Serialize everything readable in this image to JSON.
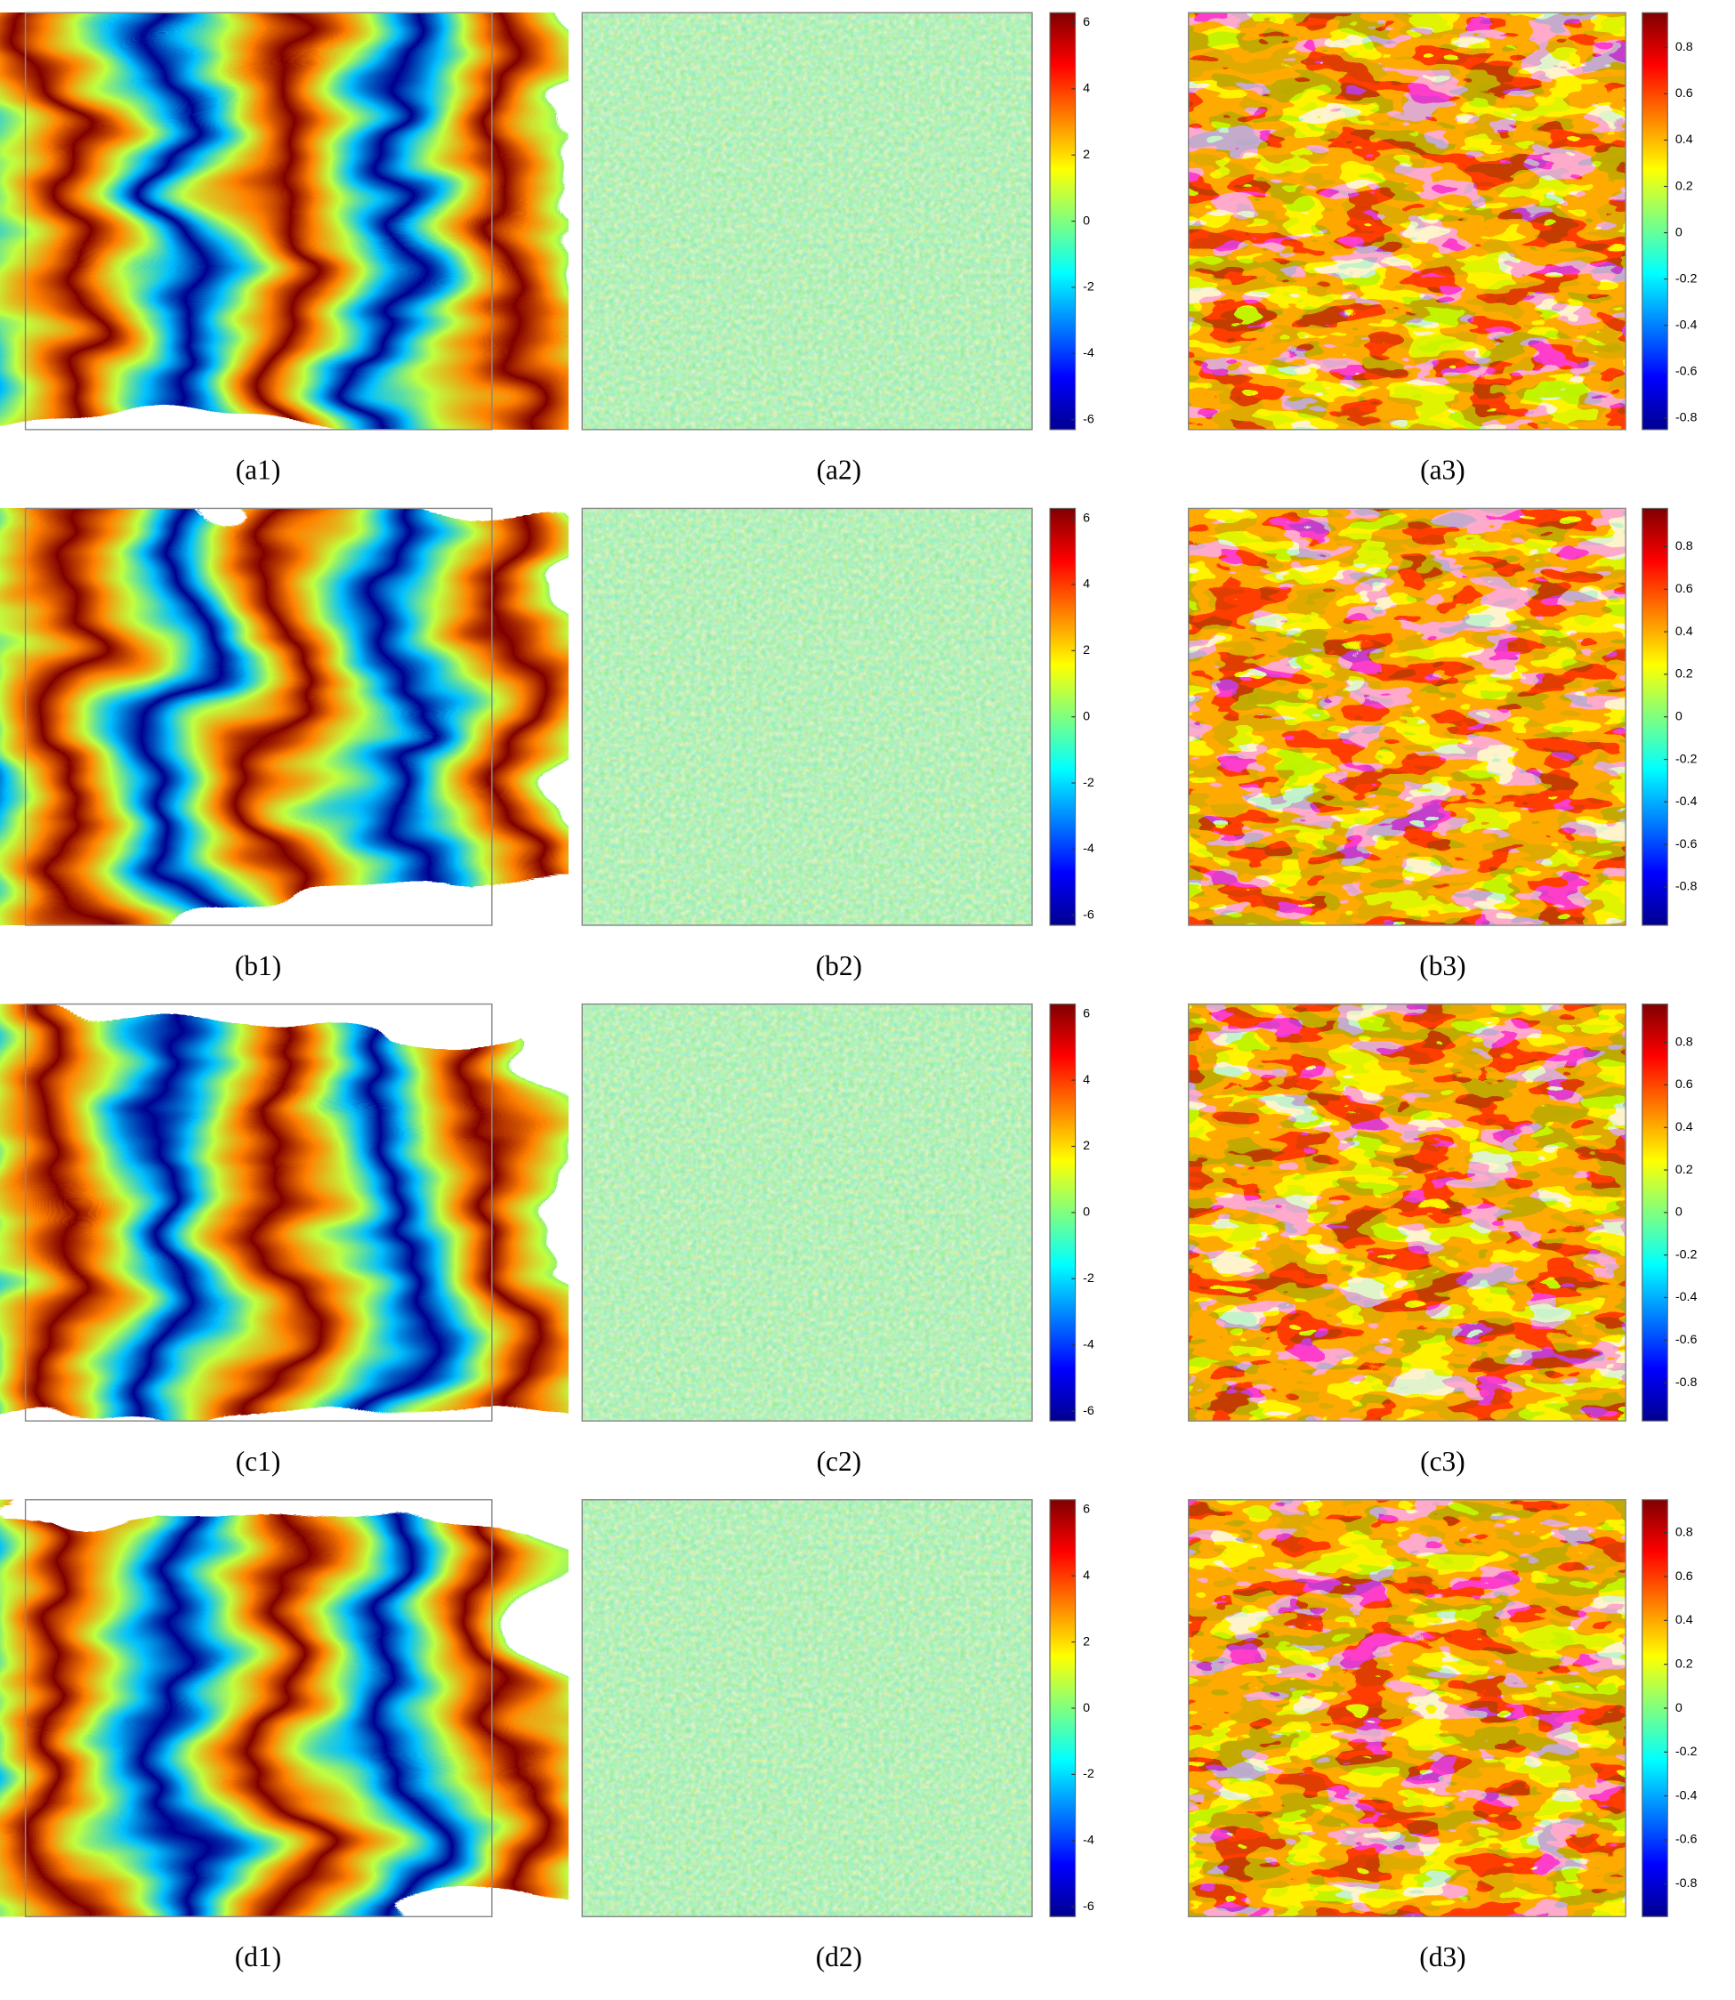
{
  "panels": [
    {
      "label": "(a1)"
    },
    {
      "label": "(a2)",
      "colorbar": {
        "lim": [
          -6.3,
          6.3
        ],
        "ticks": [
          6,
          4,
          2,
          0,
          -2,
          -4,
          -6
        ]
      }
    },
    {
      "label": "(a3)",
      "colorbar": {
        "lim": [
          -0.85,
          0.95
        ],
        "ticks": [
          0.8,
          0.6,
          0.4,
          0.2,
          0,
          -0.2,
          -0.4,
          -0.6,
          -0.8
        ]
      }
    },
    {
      "label": "(b1)"
    },
    {
      "label": "(b2)",
      "colorbar": {
        "lim": [
          -6.3,
          6.3
        ],
        "ticks": [
          6,
          4,
          2,
          0,
          -2,
          -4,
          -6
        ]
      }
    },
    {
      "label": "(b3)",
      "colorbar": {
        "lim": [
          -0.98,
          0.98
        ],
        "ticks": [
          0.8,
          0.6,
          0.4,
          0.2,
          0,
          -0.2,
          -0.4,
          -0.6,
          -0.8
        ]
      }
    },
    {
      "label": "(c1)"
    },
    {
      "label": "(c2)",
      "colorbar": {
        "lim": [
          -6.3,
          6.3
        ],
        "ticks": [
          6,
          4,
          2,
          0,
          -2,
          -4,
          -6
        ]
      }
    },
    {
      "label": "(c3)",
      "colorbar": {
        "lim": [
          -0.98,
          0.98
        ],
        "ticks": [
          0.8,
          0.6,
          0.4,
          0.2,
          0,
          -0.2,
          -0.4,
          -0.6,
          -0.8
        ]
      }
    },
    {
      "label": "(d1)"
    },
    {
      "label": "(d2)",
      "colorbar": {
        "lim": [
          -6.3,
          6.3
        ],
        "ticks": [
          6,
          4,
          2,
          0,
          -2,
          -4,
          -6
        ]
      }
    },
    {
      "label": "(d3)",
      "colorbar": {
        "lim": [
          -0.95,
          0.95
        ],
        "ticks": [
          0.8,
          0.6,
          0.4,
          0.2,
          0,
          -0.2,
          -0.4,
          -0.6,
          -0.8
        ]
      }
    }
  ]
}
